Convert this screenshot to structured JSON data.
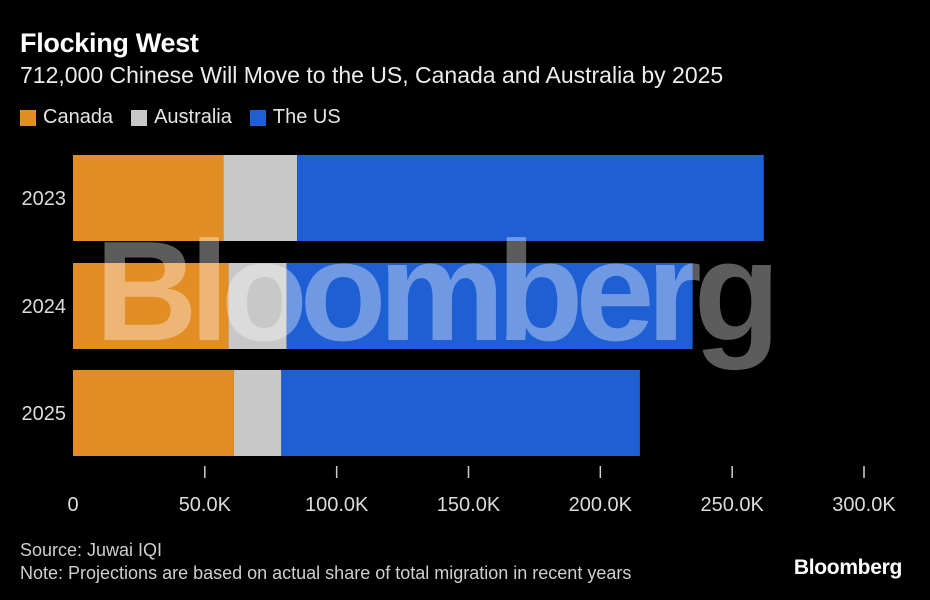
{
  "header": {
    "title": "Flocking West",
    "subtitle": "712,000 Chinese Will Move to the US, Canada and Australia by 2025"
  },
  "legend": [
    {
      "label": "Canada",
      "color": "#e38d25"
    },
    {
      "label": "Australia",
      "color": "#c8c8c8"
    },
    {
      "label": "The US",
      "color": "#1e5fd4"
    }
  ],
  "chart_data": {
    "type": "bar",
    "orientation": "horizontal",
    "stacked": true,
    "categories": [
      "2023",
      "2024",
      "2025"
    ],
    "series": [
      {
        "name": "Canada",
        "color": "#e38d25",
        "values": [
          57000,
          59000,
          61000
        ]
      },
      {
        "name": "Australia",
        "color": "#c8c8c8",
        "values": [
          28000,
          22000,
          18000
        ]
      },
      {
        "name": "The US",
        "color": "#1e5fd4",
        "values": [
          177000,
          154000,
          136000
        ]
      }
    ],
    "xlim": [
      0,
      300000
    ],
    "xticks": [
      0,
      50000,
      100000,
      150000,
      200000,
      250000,
      300000
    ],
    "xtick_labels": [
      "0",
      "50.0K",
      "100.0K",
      "150.0K",
      "200.0K",
      "250.0K",
      "300.0K"
    ],
    "xlabel": "",
    "ylabel": ""
  },
  "watermark": "Bloomberg",
  "footer": {
    "source": "Source: Juwai IQI",
    "note": "Note: Projections are based on actual share of total migration in recent years",
    "brand": "Bloomberg"
  }
}
